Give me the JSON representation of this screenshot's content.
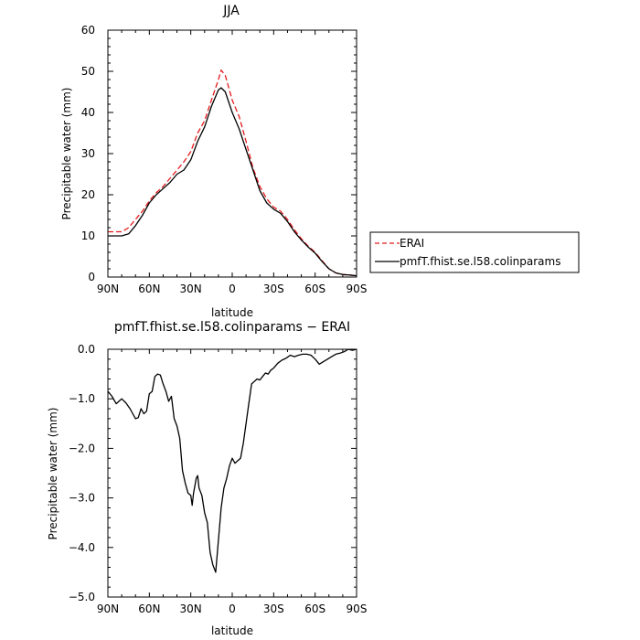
{
  "chart_data": [
    {
      "type": "line",
      "title": "JJA",
      "xlabel": "latitude",
      "ylabel": "Precipitable water (mm)",
      "xlim": [
        90,
        -90
      ],
      "ylim": [
        0,
        60
      ],
      "xticks": [
        90,
        60,
        30,
        0,
        -30,
        -60,
        -90
      ],
      "xtick_labels": [
        "90N",
        "60N",
        "30N",
        "0",
        "30S",
        "60S",
        "90S"
      ],
      "yticks": [
        0,
        10,
        20,
        30,
        40,
        50,
        60
      ],
      "ytick_labels": [
        "0",
        "10",
        "20",
        "30",
        "40",
        "50",
        "60"
      ],
      "grid": false,
      "legend_position": "right",
      "series": [
        {
          "name": "ERAI",
          "color": "#e41a1c",
          "dash": "dashed",
          "x": [
            90,
            85,
            80,
            75,
            70,
            65,
            60,
            55,
            50,
            45,
            40,
            35,
            30,
            25,
            20,
            15,
            10,
            8,
            5,
            0,
            -5,
            -10,
            -15,
            -20,
            -25,
            -30,
            -35,
            -40,
            -45,
            -50,
            -55,
            -60,
            -65,
            -70,
            -75,
            -80,
            -85,
            -90
          ],
          "y": [
            11,
            11,
            11,
            12,
            14,
            16,
            18.5,
            20.5,
            22,
            24,
            26,
            28,
            30.5,
            35,
            38,
            43,
            48,
            50.3,
            49,
            43,
            39,
            33,
            26.5,
            22,
            19,
            17,
            16,
            14,
            11.5,
            9.3,
            7.5,
            6,
            4,
            2,
            1,
            0.6,
            0.5,
            0.3
          ]
        },
        {
          "name": "pmfT.fhist.se.l58.colinparams",
          "color": "#000000",
          "dash": "solid",
          "x": [
            90,
            85,
            80,
            75,
            70,
            65,
            60,
            55,
            50,
            45,
            40,
            35,
            30,
            25,
            20,
            15,
            10,
            8,
            5,
            0,
            -5,
            -10,
            -15,
            -20,
            -25,
            -30,
            -35,
            -40,
            -45,
            -50,
            -55,
            -60,
            -65,
            -70,
            -75,
            -80,
            -85,
            -90
          ],
          "y": [
            10,
            10,
            10,
            10.5,
            12.5,
            15,
            18,
            20,
            21.5,
            23,
            25,
            26,
            28.5,
            33,
            36.5,
            41.5,
            45.5,
            46,
            45,
            40,
            36,
            31,
            26,
            21,
            18,
            16.5,
            15.5,
            13.5,
            11,
            9,
            7.3,
            5.8,
            3.8,
            2,
            1,
            0.6,
            0.5,
            0.3
          ]
        }
      ]
    },
    {
      "type": "line",
      "title": "pmfT.fhist.se.l58.colinparams − ERAI",
      "xlabel": "latitude",
      "ylabel": "Precipitable water (mm)",
      "xlim": [
        90,
        -90
      ],
      "ylim": [
        -5,
        0
      ],
      "xticks": [
        90,
        60,
        30,
        0,
        -30,
        -60,
        -90
      ],
      "xtick_labels": [
        "90N",
        "60N",
        "30N",
        "0",
        "30S",
        "60S",
        "90S"
      ],
      "yticks": [
        -5,
        -4,
        -3,
        -2,
        -1,
        0
      ],
      "ytick_labels": [
        "−5.0",
        "−4.0",
        "−3.0",
        "−2.0",
        "−1.0",
        "0.0"
      ],
      "grid": false,
      "series": [
        {
          "color": "#000000",
          "dash": "solid",
          "x": [
            90,
            87,
            84,
            82,
            80,
            77,
            74,
            72,
            70,
            68,
            66,
            64,
            62,
            60,
            58,
            56,
            54,
            52,
            50,
            48,
            46,
            44,
            42,
            40,
            38,
            36,
            34,
            32,
            30,
            29,
            28,
            26,
            25,
            24,
            22,
            20,
            18,
            16,
            14,
            12,
            10,
            8,
            6,
            4,
            2,
            0,
            -2,
            -4,
            -6,
            -8,
            -10,
            -12,
            -14,
            -16,
            -18,
            -20,
            -22,
            -24,
            -26,
            -28,
            -30,
            -33,
            -36,
            -39,
            -42,
            -45,
            -48,
            -51,
            -54,
            -57,
            -60,
            -63,
            -66,
            -69,
            -72,
            -75,
            -78,
            -81,
            -84,
            -87,
            -90
          ],
          "y": [
            -0.85,
            -0.95,
            -1.1,
            -1.05,
            -1.0,
            -1.08,
            -1.2,
            -1.3,
            -1.4,
            -1.38,
            -1.2,
            -1.3,
            -1.25,
            -0.9,
            -0.85,
            -0.55,
            -0.5,
            -0.52,
            -0.7,
            -0.85,
            -1.05,
            -0.95,
            -1.4,
            -1.55,
            -1.8,
            -2.45,
            -2.7,
            -2.9,
            -2.95,
            -3.15,
            -2.9,
            -2.6,
            -2.55,
            -2.8,
            -2.95,
            -3.3,
            -3.5,
            -4.1,
            -4.35,
            -4.5,
            -3.85,
            -3.2,
            -2.8,
            -2.6,
            -2.35,
            -2.2,
            -2.3,
            -2.25,
            -2.2,
            -1.9,
            -1.5,
            -1.1,
            -0.7,
            -0.65,
            -0.6,
            -0.62,
            -0.55,
            -0.48,
            -0.5,
            -0.42,
            -0.38,
            -0.28,
            -0.22,
            -0.18,
            -0.12,
            -0.15,
            -0.12,
            -0.1,
            -0.1,
            -0.12,
            -0.2,
            -0.3,
            -0.25,
            -0.2,
            -0.15,
            -0.1,
            -0.08,
            -0.05,
            0.0,
            -0.02,
            0.0
          ]
        }
      ]
    }
  ]
}
